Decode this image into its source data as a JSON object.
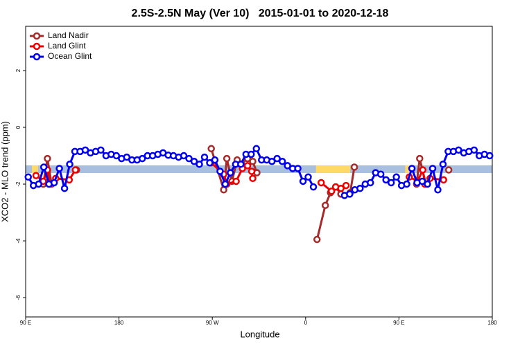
{
  "chart_data": {
    "type": "line",
    "title": "2.5S-2.5N May (Ver 10)   2015-01-01 to 2020-12-18",
    "x_label": "Longitude",
    "y_label": "XCO2 - MLO trend (ppm)",
    "xlim": [
      90,
      540
    ],
    "ylim": [
      -6.68,
      3.56
    ],
    "xticks": [
      {
        "value": 90,
        "label": "90 E"
      },
      180,
      {
        "value": 270,
        "label": "90 W"
      },
      {
        "value": 360,
        "label": "0"
      },
      {
        "value": 450,
        "label": "90 E"
      },
      {
        "value": 540,
        "label": "180"
      }
    ],
    "yticks": [
      -6,
      -4,
      -2,
      0,
      2
    ],
    "legend": "top-left",
    "reference_band": {
      "y": [
        -1.61,
        -1.34
      ],
      "color": "#a9bfdf"
    },
    "highlight_bands": [
      {
        "x": [
          96,
          102
        ],
        "y": [
          -1.61,
          -1.34
        ],
        "color": "#ffd966"
      },
      {
        "x": [
          370,
          403
        ],
        "y": [
          -1.61,
          -1.34
        ],
        "color": "#ffd966"
      },
      {
        "x": [
          456,
          462
        ],
        "y": [
          -1.61,
          -1.34
        ],
        "color": "#ffd966"
      }
    ],
    "series": [
      {
        "name": "Land Nadir",
        "color": "#a52a2a",
        "x": [
          107,
          111,
          115,
          null,
          139,
          null,
          269,
          281,
          284,
          289,
          294,
          298,
          304,
          309,
          313,
          null,
          371,
          379,
          384,
          389,
          394,
          403,
          407,
          null,
          467,
          470,
          476,
          null,
          498
        ],
        "values": [
          -2.0,
          -1.1,
          -2.0,
          null,
          -1.5,
          null,
          -0.75,
          -2.2,
          -1.1,
          -1.9,
          -1.15,
          -1.3,
          -1.1,
          -1.2,
          -1.6,
          null,
          -3.95,
          -2.75,
          -2.3,
          -2.1,
          -2.35,
          -2.3,
          -1.4,
          null,
          -2.0,
          -1.1,
          -2.0,
          null,
          -1.5
        ]
      },
      {
        "name": "Land Glint",
        "color": "#ee0000",
        "x": [
          100,
          107,
          111,
          113,
          119,
          132,
          138,
          null,
          269,
          281,
          284,
          293,
          299,
          304,
          308,
          309,
          null,
          375,
          385,
          389,
          394,
          399,
          null,
          460,
          468,
          473,
          475,
          480,
          493
        ],
        "values": [
          -1.7,
          -1.9,
          -1.5,
          -2.0,
          -1.8,
          -1.85,
          -1.5,
          null,
          -1.25,
          -1.65,
          -2.0,
          -1.9,
          -1.45,
          -1.35,
          -1.55,
          -1.8,
          null,
          -1.95,
          -2.25,
          -2.1,
          -2.15,
          -2.05,
          null,
          -1.75,
          -1.9,
          -1.5,
          -2.0,
          -1.8,
          -1.85
        ]
      },
      {
        "name": "Ocean Glint",
        "color": "#0000ee",
        "x": [
          92.5,
          97.5,
          102.5,
          107.5,
          112.5,
          117.5,
          122.5,
          127.5,
          132.5,
          137.5,
          142.5,
          147.5,
          152.5,
          157.5,
          162.5,
          167.5,
          172.5,
          177.5,
          182.5,
          187.5,
          192.5,
          197.5,
          202.5,
          207.5,
          212.5,
          217.5,
          222.5,
          227.5,
          232.5,
          237.5,
          242.5,
          247.5,
          252.5,
          257.5,
          262.5,
          267.5,
          272.5,
          277.5,
          282.5,
          287.5,
          292.5,
          297.5,
          302.5,
          307.5,
          312.5,
          317.5,
          322.5,
          327.5,
          332.5,
          337.5,
          342.5,
          347.5,
          352.5,
          357.5,
          362.5,
          367.5,
          372.5,
          377.5,
          382.5,
          387.5,
          392.5,
          397.5,
          402.5,
          407.5,
          412.5,
          417.5,
          422.5,
          427.5,
          432.5,
          437.5,
          442.5,
          447.5,
          452.5,
          457.5,
          462.5,
          467.5,
          472.5,
          477.5,
          482.5,
          487.5,
          492.5,
          497.5,
          502.5,
          507.5,
          512.5,
          517.5,
          522.5,
          527.5,
          532.5,
          537.5
        ],
        "values": [
          -1.75,
          -2.05,
          -2.0,
          -1.4,
          -2.0,
          -1.95,
          -1.45,
          -2.15,
          -1.3,
          -0.85,
          -0.85,
          -0.8,
          -0.9,
          -0.85,
          -0.8,
          -1.0,
          -0.95,
          -1.0,
          -1.1,
          -1.05,
          -1.15,
          -1.15,
          -1.1,
          -1.0,
          -1.0,
          -0.95,
          -0.9,
          -0.98,
          -1.0,
          -1.05,
          -1.0,
          -1.1,
          -1.2,
          -1.3,
          -1.05,
          -1.25,
          -1.15,
          -1.55,
          -2.0,
          -1.6,
          -1.3,
          -1.3,
          -0.95,
          -0.95,
          -0.75,
          -1.15,
          -1.15,
          -1.2,
          -1.1,
          -1.2,
          -1.35,
          -1.45,
          -1.45,
          -1.9,
          -1.75,
          -2.1,
          null,
          null,
          null,
          null,
          null,
          -2.4,
          -2.35,
          -2.2,
          -2.15,
          -2.0,
          -1.95,
          -1.6,
          -1.65,
          -1.85,
          -1.95,
          -1.75,
          -2.05,
          -2.0,
          -1.45,
          -1.95,
          -1.9,
          -2.0,
          -1.45,
          -2.2,
          -1.3,
          -0.85,
          -0.85,
          -0.8,
          -0.9,
          -0.85,
          -0.8,
          -1.0,
          -0.95,
          -1.0
        ]
      }
    ]
  }
}
